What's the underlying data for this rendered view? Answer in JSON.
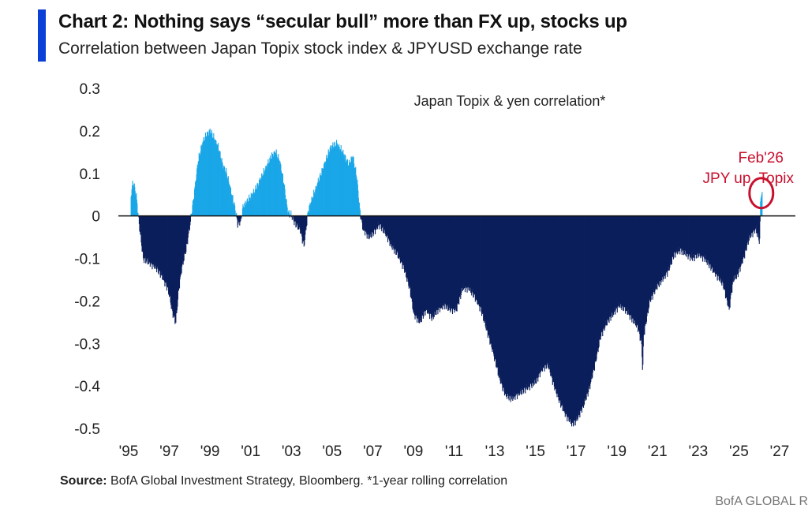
{
  "header": {
    "title": "Chart 2: Nothing says “secular bull” more than FX up, stocks up",
    "subtitle": "Correlation between Japan Topix stock index & JPYUSD exchange rate"
  },
  "footer": {
    "source_label": "Source:",
    "source_text": " BofA Global Investment Strategy, Bloomberg. *1-year rolling correlation",
    "brand": "BofA GLOBAL R"
  },
  "colors": {
    "positive": "#1aa7e8",
    "negative": "#0b1f5c",
    "highlight": "#c8102e",
    "accent": "#0a3fd8"
  },
  "chart_data": {
    "type": "bar",
    "legend_label": "Japan Topix & yen correlation*",
    "ylim": [
      -0.5,
      0.3
    ],
    "xlim": [
      1995,
      2027
    ],
    "y_ticks": [
      0.3,
      0.2,
      0.1,
      0,
      -0.1,
      -0.2,
      -0.3,
      -0.4,
      -0.5
    ],
    "y_tick_labels": [
      "0.3",
      "0.2",
      "0.1",
      "0",
      "-0.1",
      "-0.2",
      "-0.3",
      "-0.4",
      "-0.5"
    ],
    "x_ticks": [
      1995,
      1997,
      1999,
      2001,
      2003,
      2005,
      2007,
      2009,
      2011,
      2013,
      2015,
      2017,
      2019,
      2021,
      2023,
      2025,
      2027
    ],
    "x_tick_labels": [
      "'95",
      "'97",
      "'99",
      "'01",
      "'03",
      "'05",
      "'07",
      "'09",
      "'11",
      "'13",
      "'15",
      "'17",
      "'19",
      "'21",
      "'23",
      "'25",
      "'27"
    ],
    "grid": false,
    "annotation": {
      "lines": [
        "Feb'26",
        "JPY up, Topix"
      ],
      "x": 2026.1,
      "y": 0.05
    },
    "series": [
      {
        "points": [
          [
            1995.1,
            0.05
          ],
          [
            1995.2,
            0.08
          ],
          [
            1995.35,
            0.05
          ],
          [
            1995.5,
            -0.02
          ],
          [
            1995.7,
            -0.1
          ],
          [
            1996.0,
            -0.11
          ],
          [
            1996.3,
            -0.12
          ],
          [
            1996.6,
            -0.14
          ],
          [
            1996.9,
            -0.17
          ],
          [
            1997.0,
            -0.19
          ],
          [
            1997.15,
            -0.23
          ],
          [
            1997.3,
            -0.25
          ],
          [
            1997.45,
            -0.17
          ],
          [
            1997.6,
            -0.12
          ],
          [
            1997.8,
            -0.08
          ],
          [
            1998.0,
            -0.02
          ],
          [
            1998.2,
            0.05
          ],
          [
            1998.4,
            0.13
          ],
          [
            1998.6,
            0.17
          ],
          [
            1998.8,
            0.19
          ],
          [
            1999.0,
            0.2
          ],
          [
            1999.2,
            0.18
          ],
          [
            1999.4,
            0.16
          ],
          [
            1999.6,
            0.12
          ],
          [
            1999.8,
            0.1
          ],
          [
            2000.0,
            0.06
          ],
          [
            2000.2,
            0.02
          ],
          [
            2000.35,
            -0.02
          ],
          [
            2000.5,
            -0.01
          ],
          [
            2000.6,
            0.02
          ],
          [
            2000.9,
            0.04
          ],
          [
            2001.2,
            0.06
          ],
          [
            2001.5,
            0.09
          ],
          [
            2001.8,
            0.12
          ],
          [
            2002.0,
            0.14
          ],
          [
            2002.2,
            0.15
          ],
          [
            2002.4,
            0.13
          ],
          [
            2002.6,
            0.08
          ],
          [
            2002.8,
            0.01
          ],
          [
            2003.0,
            0.0
          ],
          [
            2003.2,
            -0.02
          ],
          [
            2003.4,
            -0.03
          ],
          [
            2003.6,
            -0.07
          ],
          [
            2003.8,
            0.01
          ],
          [
            2004.0,
            0.04
          ],
          [
            2004.3,
            0.08
          ],
          [
            2004.6,
            0.12
          ],
          [
            2004.9,
            0.16
          ],
          [
            2005.2,
            0.17
          ],
          [
            2005.5,
            0.15
          ],
          [
            2005.8,
            0.12
          ],
          [
            2006.0,
            0.14
          ],
          [
            2006.2,
            0.09
          ],
          [
            2006.35,
            0.01
          ],
          [
            2006.5,
            -0.03
          ],
          [
            2006.8,
            -0.05
          ],
          [
            2007.0,
            -0.04
          ],
          [
            2007.3,
            -0.02
          ],
          [
            2007.6,
            -0.04
          ],
          [
            2007.9,
            -0.07
          ],
          [
            2008.2,
            -0.09
          ],
          [
            2008.5,
            -0.12
          ],
          [
            2008.8,
            -0.17
          ],
          [
            2009.0,
            -0.23
          ],
          [
            2009.3,
            -0.25
          ],
          [
            2009.6,
            -0.22
          ],
          [
            2009.9,
            -0.24
          ],
          [
            2010.2,
            -0.22
          ],
          [
            2010.5,
            -0.21
          ],
          [
            2010.8,
            -0.22
          ],
          [
            2011.1,
            -0.22
          ],
          [
            2011.4,
            -0.17
          ],
          [
            2011.7,
            -0.17
          ],
          [
            2012.0,
            -0.19
          ],
          [
            2012.3,
            -0.22
          ],
          [
            2012.6,
            -0.27
          ],
          [
            2012.9,
            -0.32
          ],
          [
            2013.2,
            -0.38
          ],
          [
            2013.5,
            -0.42
          ],
          [
            2013.8,
            -0.43
          ],
          [
            2014.1,
            -0.42
          ],
          [
            2014.4,
            -0.41
          ],
          [
            2014.7,
            -0.4
          ],
          [
            2015.0,
            -0.39
          ],
          [
            2015.3,
            -0.36
          ],
          [
            2015.6,
            -0.35
          ],
          [
            2015.9,
            -0.4
          ],
          [
            2016.2,
            -0.44
          ],
          [
            2016.5,
            -0.47
          ],
          [
            2016.8,
            -0.49
          ],
          [
            2017.0,
            -0.48
          ],
          [
            2017.3,
            -0.45
          ],
          [
            2017.6,
            -0.41
          ],
          [
            2017.9,
            -0.35
          ],
          [
            2018.2,
            -0.28
          ],
          [
            2018.5,
            -0.25
          ],
          [
            2018.8,
            -0.23
          ],
          [
            2019.1,
            -0.21
          ],
          [
            2019.4,
            -0.22
          ],
          [
            2019.7,
            -0.24
          ],
          [
            2020.0,
            -0.26
          ],
          [
            2020.2,
            -0.3
          ],
          [
            2020.25,
            -0.37
          ],
          [
            2020.3,
            -0.28
          ],
          [
            2020.6,
            -0.2
          ],
          [
            2020.9,
            -0.17
          ],
          [
            2021.2,
            -0.15
          ],
          [
            2021.5,
            -0.13
          ],
          [
            2021.8,
            -0.09
          ],
          [
            2022.1,
            -0.08
          ],
          [
            2022.4,
            -0.09
          ],
          [
            2022.7,
            -0.1
          ],
          [
            2023.0,
            -0.09
          ],
          [
            2023.3,
            -0.1
          ],
          [
            2023.6,
            -0.12
          ],
          [
            2023.9,
            -0.14
          ],
          [
            2024.2,
            -0.16
          ],
          [
            2024.5,
            -0.22
          ],
          [
            2024.7,
            -0.15
          ],
          [
            2024.9,
            -0.14
          ],
          [
            2025.2,
            -0.1
          ],
          [
            2025.5,
            -0.05
          ],
          [
            2025.8,
            -0.03
          ],
          [
            2026.0,
            -0.06
          ],
          [
            2026.05,
            0.05
          ],
          [
            2026.12,
            0.05
          ]
        ]
      }
    ]
  }
}
